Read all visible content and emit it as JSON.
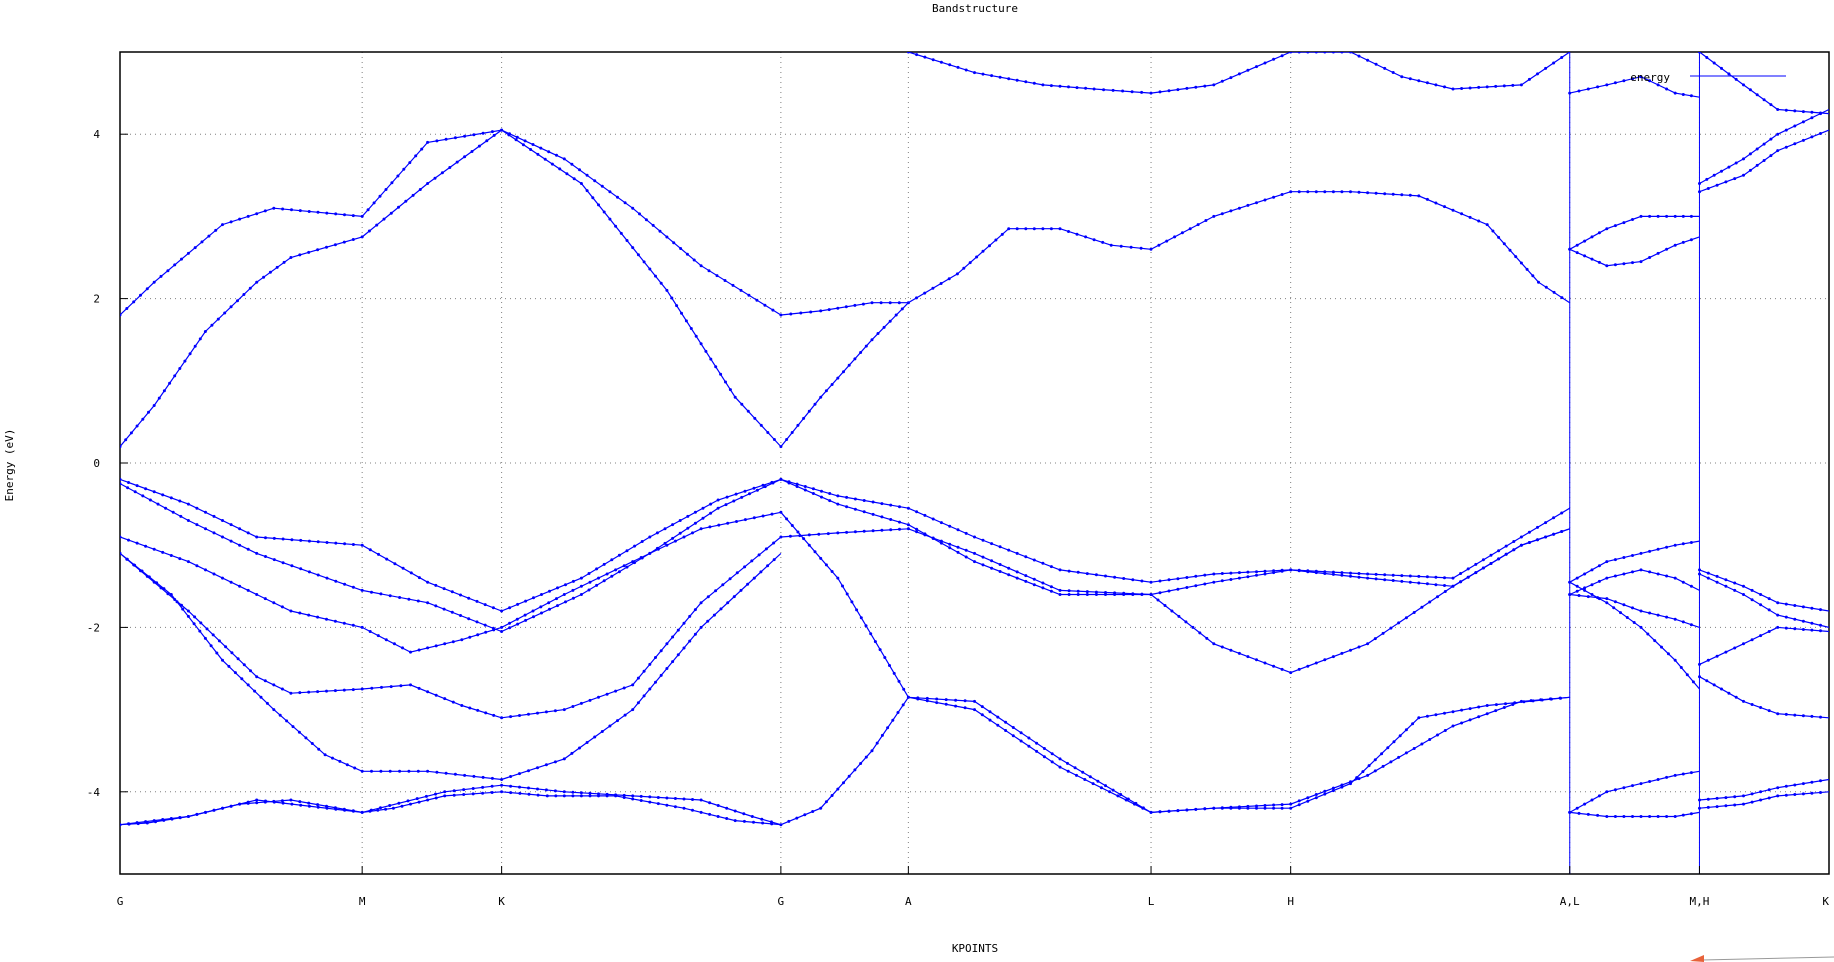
{
  "chart_data": {
    "type": "line",
    "title": "Bandstructure",
    "xlabel": "KPOINTS",
    "ylabel": "Energy (eV)",
    "ylim": [
      -5,
      5
    ],
    "xlim": [
      0,
      1
    ],
    "grid": true,
    "legend_position": "top-right",
    "legend": [
      "energy"
    ],
    "series_color": "#0000ff",
    "y_ticks": [
      {
        "value": 4,
        "label": "4"
      },
      {
        "value": 2,
        "label": "2"
      },
      {
        "value": 0,
        "label": "0"
      },
      {
        "value": -2,
        "label": "-2"
      },
      {
        "value": -4,
        "label": "-4"
      }
    ],
    "x_ticks": [
      {
        "value": 0.0,
        "label": "G"
      },
      {
        "value": 0.1417,
        "label": "M"
      },
      {
        "value": 0.2233,
        "label": "K"
      },
      {
        "value": 0.3867,
        "label": "G"
      },
      {
        "value": 0.4613,
        "label": "A"
      },
      {
        "value": 0.6033,
        "label": "L"
      },
      {
        "value": 0.685,
        "label": "H"
      },
      {
        "value": 0.8483,
        "label": "A,L"
      },
      {
        "value": 0.9242,
        "label": "M,H"
      },
      {
        "value": 1.0,
        "label": "K"
      }
    ],
    "series": [
      {
        "name": "energy",
        "x": [
          0.0,
          0.016,
          0.04,
          0.07,
          0.1,
          0.1417,
          0.16,
          0.19,
          0.2233,
          0.25,
          0.29,
          0.33,
          0.36,
          0.3867
        ],
        "y": [
          -4.4,
          -4.38,
          -4.3,
          -4.15,
          -4.1,
          -4.25,
          -4.2,
          -4.05,
          -4.0,
          -4.05,
          -4.05,
          -4.2,
          -4.35,
          -4.4
        ]
      },
      {
        "name": "energy",
        "x": [
          0.0,
          0.04,
          0.08,
          0.1417,
          0.19,
          0.2233,
          0.26,
          0.3,
          0.34,
          0.37,
          0.3867
        ],
        "y": [
          -4.4,
          -4.3,
          -4.1,
          -4.25,
          -4.0,
          -3.92,
          -4.0,
          -4.05,
          -4.1,
          -4.3,
          -4.4
        ]
      },
      {
        "name": "energy",
        "x": [
          0.0,
          0.03,
          0.06,
          0.09,
          0.12,
          0.1417,
          0.18,
          0.2233,
          0.26,
          0.3,
          0.34,
          0.3867
        ],
        "y": [
          -1.1,
          -1.6,
          -2.4,
          -3.0,
          -3.55,
          -3.75,
          -3.75,
          -3.85,
          -3.6,
          -3.0,
          -2.0,
          -1.1
        ]
      },
      {
        "name": "energy",
        "x": [
          0.0,
          0.04,
          0.08,
          0.1,
          0.1417,
          0.17,
          0.2,
          0.2233,
          0.26,
          0.3,
          0.34,
          0.3867
        ],
        "y": [
          -1.1,
          -1.8,
          -2.6,
          -2.8,
          -2.75,
          -2.7,
          -2.95,
          -3.1,
          -3.0,
          -2.7,
          -1.7,
          -0.9
        ]
      },
      {
        "name": "energy",
        "x": [
          0.0,
          0.04,
          0.08,
          0.1,
          0.1417,
          0.17,
          0.2,
          0.2233,
          0.26,
          0.3,
          0.34,
          0.3867
        ],
        "y": [
          -0.9,
          -1.2,
          -1.6,
          -1.8,
          -2.0,
          -2.3,
          -2.15,
          -2.0,
          -1.6,
          -1.2,
          -0.8,
          -0.6
        ]
      },
      {
        "name": "energy",
        "x": [
          0.0,
          0.04,
          0.08,
          0.1417,
          0.18,
          0.2233,
          0.27,
          0.31,
          0.35,
          0.3867
        ],
        "y": [
          -0.2,
          -0.5,
          -0.9,
          -1.0,
          -1.45,
          -1.8,
          -1.4,
          -0.9,
          -0.45,
          -0.2
        ]
      },
      {
        "name": "energy",
        "x": [
          0.0,
          0.04,
          0.08,
          0.1417,
          0.18,
          0.2233,
          0.27,
          0.31,
          0.35,
          0.3867
        ],
        "y": [
          -0.25,
          -0.7,
          -1.1,
          -1.55,
          -1.7,
          -2.05,
          -1.6,
          -1.1,
          -0.55,
          -0.2
        ]
      },
      {
        "name": "energy",
        "x": [
          0.0,
          0.02,
          0.05,
          0.08,
          0.1,
          0.1417,
          0.18,
          0.2233,
          0.26,
          0.3,
          0.34,
          0.3867
        ],
        "y": [
          0.2,
          0.7,
          1.6,
          2.2,
          2.5,
          2.75,
          3.4,
          4.05,
          3.7,
          3.1,
          2.4,
          1.8
        ]
      },
      {
        "name": "energy",
        "x": [
          0.0,
          0.02,
          0.06,
          0.09,
          0.1417,
          0.18,
          0.2233,
          0.27,
          0.32,
          0.36,
          0.3867
        ],
        "y": [
          1.8,
          2.2,
          2.9,
          3.1,
          3.0,
          3.9,
          4.05,
          3.4,
          2.1,
          0.8,
          0.2
        ]
      },
      {
        "name": "energy",
        "x": [
          0.3867,
          0.41,
          0.44,
          0.4613,
          0.49,
          0.52,
          0.55,
          0.58,
          0.6033,
          0.64,
          0.685,
          0.72,
          0.76,
          0.8,
          0.83,
          0.8483
        ],
        "y": [
          1.8,
          1.85,
          1.95,
          1.95,
          2.3,
          2.85,
          2.85,
          2.65,
          2.6,
          3.0,
          3.3,
          3.3,
          3.25,
          2.9,
          2.2,
          1.95
        ]
      },
      {
        "name": "energy",
        "x": [
          0.3867,
          0.41,
          0.44,
          0.4613
        ],
        "y": [
          0.2,
          0.8,
          1.5,
          1.95
        ]
      },
      {
        "name": "energy",
        "x": [
          0.3867,
          0.41,
          0.44,
          0.4613,
          0.5,
          0.55,
          0.6033,
          0.64,
          0.685,
          0.73,
          0.78,
          0.82,
          0.8483
        ],
        "y": [
          -4.4,
          -4.2,
          -3.5,
          -2.85,
          -3.0,
          -3.7,
          -4.25,
          -4.2,
          -4.15,
          -3.8,
          -3.2,
          -2.9,
          -2.85
        ]
      },
      {
        "name": "energy",
        "x": [
          0.3867,
          0.42,
          0.4613,
          0.5,
          0.55,
          0.6033,
          0.64,
          0.685,
          0.72,
          0.76,
          0.8,
          0.8483
        ],
        "y": [
          -0.6,
          -1.4,
          -2.85,
          -2.9,
          -3.6,
          -4.25,
          -4.2,
          -4.2,
          -3.9,
          -3.1,
          -2.95,
          -2.85
        ]
      },
      {
        "name": "energy",
        "x": [
          0.3867,
          0.42,
          0.4613,
          0.5,
          0.55,
          0.6033,
          0.64,
          0.685,
          0.73,
          0.78,
          0.82,
          0.8483
        ],
        "y": [
          -0.2,
          -0.5,
          -0.75,
          -1.2,
          -1.6,
          -1.6,
          -2.2,
          -2.55,
          -2.2,
          -1.5,
          -1.0,
          -0.8
        ]
      },
      {
        "name": "energy",
        "x": [
          0.3867,
          0.42,
          0.4613,
          0.5,
          0.55,
          0.6033,
          0.64,
          0.685,
          0.73,
          0.78,
          0.82,
          0.8483
        ],
        "y": [
          -0.2,
          -0.4,
          -0.55,
          -0.9,
          -1.3,
          -1.45,
          -1.35,
          -1.3,
          -1.35,
          -1.4,
          -0.9,
          -0.55
        ]
      },
      {
        "name": "energy",
        "x": [
          0.3867,
          0.42,
          0.4613,
          0.5,
          0.55,
          0.6033,
          0.64,
          0.685,
          0.73,
          0.78,
          0.82,
          0.8483
        ],
        "y": [
          -0.9,
          -0.85,
          -0.8,
          -1.1,
          -1.55,
          -1.6,
          -1.45,
          -1.3,
          -1.4,
          -1.5,
          -1.0,
          -0.8
        ]
      },
      {
        "name": "energy",
        "x": [
          0.4613,
          0.5,
          0.54,
          0.57,
          0.6033,
          0.64,
          0.685,
          0.72,
          0.75,
          0.78,
          0.82,
          0.8483
        ],
        "y": [
          5.0,
          4.75,
          4.6,
          4.55,
          4.5,
          4.6,
          5.0,
          5.0,
          4.7,
          4.55,
          4.6,
          5.0
        ]
      },
      {
        "name": "energy",
        "x": [
          0.8483,
          0.87,
          0.89,
          0.91,
          0.9242
        ],
        "y": [
          2.6,
          2.4,
          2.45,
          2.65,
          2.75
        ]
      },
      {
        "name": "energy",
        "x": [
          0.8483,
          0.87,
          0.89,
          0.91,
          0.9242
        ],
        "y": [
          2.6,
          2.85,
          3.0,
          3.0,
          3.0
        ]
      },
      {
        "name": "energy",
        "x": [
          0.8483,
          0.87,
          0.89,
          0.91,
          0.9242
        ],
        "y": [
          4.5,
          4.6,
          4.7,
          4.5,
          4.45
        ]
      },
      {
        "name": "energy",
        "x": [
          0.8483,
          0.87,
          0.89,
          0.91,
          0.9242
        ],
        "y": [
          -1.45,
          -1.7,
          -2.0,
          -2.4,
          -2.75
        ]
      },
      {
        "name": "energy",
        "x": [
          0.8483,
          0.87,
          0.89,
          0.91,
          0.9242
        ],
        "y": [
          -1.6,
          -1.65,
          -1.8,
          -1.9,
          -2.0
        ]
      },
      {
        "name": "energy",
        "x": [
          0.8483,
          0.87,
          0.89,
          0.91,
          0.9242
        ],
        "y": [
          -1.6,
          -1.4,
          -1.3,
          -1.4,
          -1.55
        ]
      },
      {
        "name": "energy",
        "x": [
          0.8483,
          0.87,
          0.89,
          0.91,
          0.9242
        ],
        "y": [
          -1.45,
          -1.2,
          -1.1,
          -1.0,
          -0.95
        ]
      },
      {
        "name": "energy",
        "x": [
          0.8483,
          0.87,
          0.89,
          0.91,
          0.9242
        ],
        "y": [
          -4.25,
          -4.3,
          -4.3,
          -4.3,
          -4.25
        ]
      },
      {
        "name": "energy",
        "x": [
          0.8483,
          0.87,
          0.89,
          0.91,
          0.9242
        ],
        "y": [
          -4.25,
          -4.0,
          -3.9,
          -3.8,
          -3.75
        ]
      },
      {
        "name": "energy",
        "x": [
          0.9242,
          0.95,
          0.97,
          1.0
        ],
        "y": [
          3.3,
          3.5,
          3.8,
          4.05
        ]
      },
      {
        "name": "energy",
        "x": [
          0.9242,
          0.95,
          0.97,
          1.0
        ],
        "y": [
          3.4,
          3.7,
          4.0,
          4.3
        ]
      },
      {
        "name": "energy",
        "x": [
          0.9242,
          0.95,
          0.97,
          1.0
        ],
        "y": [
          5.0,
          4.6,
          4.3,
          4.25
        ]
      },
      {
        "name": "energy",
        "x": [
          0.9242,
          0.95,
          0.97,
          1.0
        ],
        "y": [
          -1.3,
          -1.5,
          -1.7,
          -1.8
        ]
      },
      {
        "name": "energy",
        "x": [
          0.9242,
          0.95,
          0.97,
          1.0
        ],
        "y": [
          -1.35,
          -1.6,
          -1.85,
          -2.0
        ]
      },
      {
        "name": "energy",
        "x": [
          0.9242,
          0.95,
          0.97,
          1.0
        ],
        "y": [
          -2.45,
          -2.2,
          -2.0,
          -2.05
        ]
      },
      {
        "name": "energy",
        "x": [
          0.9242,
          0.95,
          0.97,
          1.0
        ],
        "y": [
          -2.6,
          -2.9,
          -3.05,
          -3.1
        ]
      },
      {
        "name": "energy",
        "x": [
          0.9242,
          0.95,
          0.97,
          1.0
        ],
        "y": [
          -4.1,
          -4.05,
          -3.95,
          -3.85
        ]
      },
      {
        "name": "energy",
        "x": [
          0.9242,
          0.95,
          0.97,
          1.0
        ],
        "y": [
          -4.2,
          -4.15,
          -4.05,
          -4.0
        ]
      }
    ]
  }
}
